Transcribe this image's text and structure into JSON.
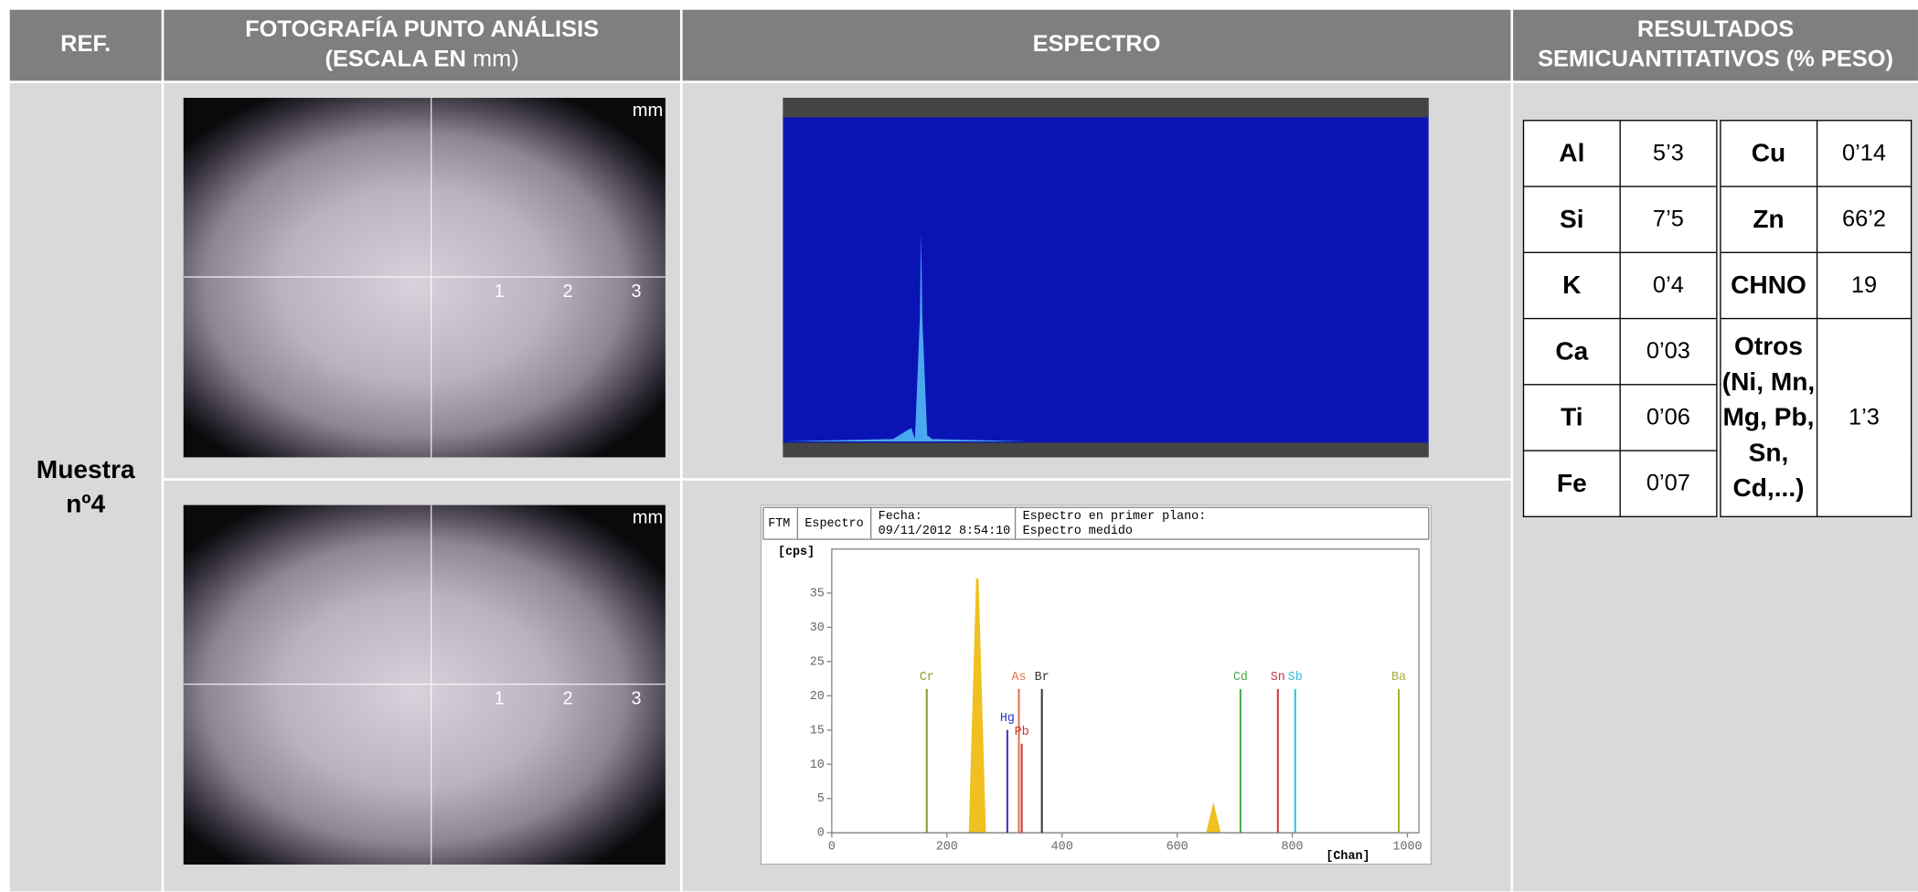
{
  "header": {
    "ref": "REF.",
    "photo": "FOTOGRAFÍA PUNTO ANÁLISIS",
    "photo_scale_prefix": "(ESCALA EN",
    "photo_scale_unit": "mm)",
    "spectrum": "ESPECTRO",
    "results_1": "RESULTADOS",
    "results_2": "SEMICUANTITATIVOS (% PESO)"
  },
  "sample": "Muestra nº4",
  "photos": [
    {
      "unit": "mm",
      "scale": [
        "1",
        "2",
        "3"
      ]
    },
    {
      "unit": "mm",
      "scale": [
        "1",
        "2",
        "3"
      ]
    }
  ],
  "spectrum": {
    "header": [
      "FTM",
      "Espectro",
      "Fecha:",
      "09/11/2012 8:54:10",
      "Espectro en primer plano:",
      "Espectro medido"
    ],
    "y_unit": "[cps]",
    "x_unit": "[Chan]",
    "xlim": [
      0,
      1020
    ],
    "ylim": [
      0,
      40
    ],
    "xticks": [
      0,
      200,
      400,
      600,
      800,
      1000
    ],
    "yticks": [
      0,
      5,
      10,
      15,
      20,
      25,
      30,
      35
    ],
    "elements": [
      {
        "label": "Cr",
        "chan": 165,
        "cps": 21,
        "color": "#8a9a2a"
      },
      {
        "label": "Hg",
        "chan": 305,
        "cps": 15,
        "color": "#3333cc"
      },
      {
        "label": "As",
        "chan": 325,
        "cps": 21,
        "color": "#e07050"
      },
      {
        "label": "Pb",
        "chan": 330,
        "cps": 13,
        "color": "#cc3333"
      },
      {
        "label": "Br",
        "chan": 365,
        "cps": 21,
        "color": "#333333"
      },
      {
        "label": "Cd",
        "chan": 710,
        "cps": 21,
        "color": "#44aa44"
      },
      {
        "label": "Sn",
        "chan": 775,
        "cps": 21,
        "color": "#cc3344"
      },
      {
        "label": "Sb",
        "chan": 805,
        "cps": 21,
        "color": "#33bbdd"
      },
      {
        "label": "Ba",
        "chan": 985,
        "cps": 21,
        "color": "#aaaa33"
      }
    ]
  },
  "results": {
    "left": [
      [
        "Al",
        "5’3"
      ],
      [
        "Si",
        "7’5"
      ],
      [
        "K",
        "0’4"
      ],
      [
        "Ca",
        "0’03"
      ],
      [
        "Ti",
        "0’06"
      ],
      [
        "Fe",
        "0’07"
      ]
    ],
    "right": [
      [
        "Cu",
        "0’14"
      ],
      [
        "Zn",
        "66’2"
      ],
      [
        "CHNO",
        "19"
      ],
      [
        "Otros (Ni, Mn, Mg, Pb, Sn, Cd,...)",
        "1’3"
      ]
    ]
  }
}
